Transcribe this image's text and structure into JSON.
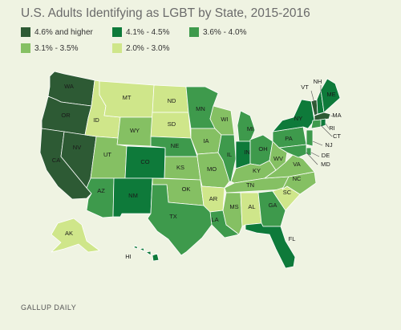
{
  "title": "U.S. Adults Identifying as LGBT by State, 2015-2016",
  "legend": [
    {
      "label": "4.6% and higher",
      "color": "#2d5a34"
    },
    {
      "label": "4.1% - 4.5%",
      "color": "#0e7a3a"
    },
    {
      "label": "3.6% - 4.0%",
      "color": "#3e9a4c"
    },
    {
      "label": "3.1% - 3.5%",
      "color": "#85c063"
    },
    {
      "label": "2.0% - 3.0%",
      "color": "#cfe68a"
    }
  ],
  "states": [
    {
      "code": "WA",
      "tier": 0
    },
    {
      "code": "OR",
      "tier": 0
    },
    {
      "code": "CA",
      "tier": 0
    },
    {
      "code": "NV",
      "tier": 0
    },
    {
      "code": "ID",
      "tier": 4
    },
    {
      "code": "MT",
      "tier": 4
    },
    {
      "code": "WY",
      "tier": 3
    },
    {
      "code": "UT",
      "tier": 3
    },
    {
      "code": "AZ",
      "tier": 2
    },
    {
      "code": "CO",
      "tier": 1
    },
    {
      "code": "NM",
      "tier": 1
    },
    {
      "code": "ND",
      "tier": 4
    },
    {
      "code": "SD",
      "tier": 4
    },
    {
      "code": "NE",
      "tier": 2
    },
    {
      "code": "KS",
      "tier": 3
    },
    {
      "code": "OK",
      "tier": 3
    },
    {
      "code": "TX",
      "tier": 2
    },
    {
      "code": "MN",
      "tier": 2
    },
    {
      "code": "IA",
      "tier": 3
    },
    {
      "code": "MO",
      "tier": 3
    },
    {
      "code": "AR",
      "tier": 4
    },
    {
      "code": "LA",
      "tier": 2
    },
    {
      "code": "WI",
      "tier": 3
    },
    {
      "code": "IL",
      "tier": 2
    },
    {
      "code": "MI",
      "tier": 2
    },
    {
      "code": "IN",
      "tier": 1
    },
    {
      "code": "OH",
      "tier": 2
    },
    {
      "code": "KY",
      "tier": 3
    },
    {
      "code": "TN",
      "tier": 3
    },
    {
      "code": "MS",
      "tier": 3
    },
    {
      "code": "AL",
      "tier": 4
    },
    {
      "code": "GA",
      "tier": 2
    },
    {
      "code": "FL",
      "tier": 1
    },
    {
      "code": "SC",
      "tier": 4
    },
    {
      "code": "NC",
      "tier": 3
    },
    {
      "code": "VA",
      "tier": 3
    },
    {
      "code": "WV",
      "tier": 3
    },
    {
      "code": "PA",
      "tier": 2
    },
    {
      "code": "NY",
      "tier": 1
    },
    {
      "code": "VT",
      "tier": 0
    },
    {
      "code": "NH",
      "tier": 1
    },
    {
      "code": "ME",
      "tier": 1
    },
    {
      "code": "MA",
      "tier": 0
    },
    {
      "code": "RI",
      "tier": 1
    },
    {
      "code": "CT",
      "tier": 2
    },
    {
      "code": "NJ",
      "tier": 2
    },
    {
      "code": "DE",
      "tier": 2
    },
    {
      "code": "MD",
      "tier": 2
    },
    {
      "code": "AK",
      "tier": 4
    },
    {
      "code": "HI",
      "tier": 1
    }
  ],
  "source": "GALLUP DAILY"
}
